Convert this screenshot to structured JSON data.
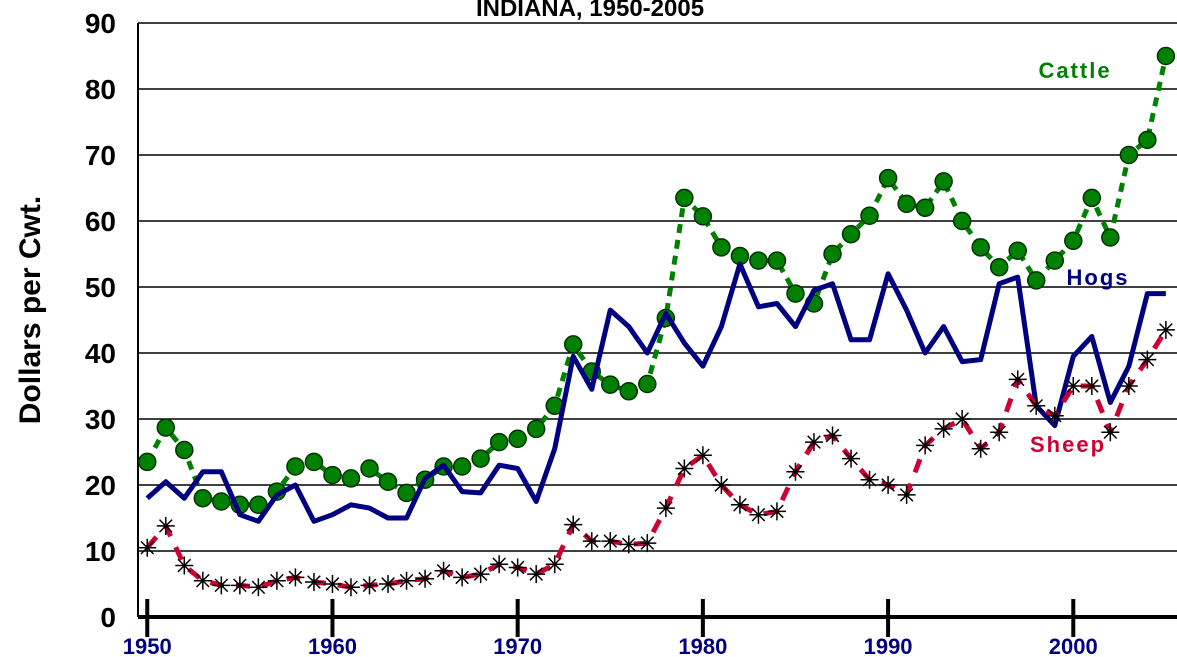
{
  "chart_data": {
    "type": "line",
    "title": "INDIANA, 1950-2005",
    "y_label": "Dollars per Cwt.",
    "x": [
      1950,
      1951,
      1952,
      1953,
      1954,
      1955,
      1956,
      1957,
      1958,
      1959,
      1960,
      1961,
      1962,
      1963,
      1964,
      1965,
      1966,
      1967,
      1968,
      1969,
      1970,
      1971,
      1972,
      1973,
      1974,
      1975,
      1976,
      1977,
      1978,
      1979,
      1980,
      1981,
      1982,
      1983,
      1984,
      1985,
      1986,
      1987,
      1988,
      1989,
      1990,
      1991,
      1992,
      1993,
      1994,
      1995,
      1996,
      1997,
      1998,
      1999,
      2000,
      2001,
      2002,
      2003,
      2004,
      2005
    ],
    "series": [
      {
        "name": "Cattle",
        "color": "#008000",
        "values": [
          23.5,
          28.7,
          25.3,
          18,
          17.5,
          17,
          17,
          19,
          22.8,
          23.5,
          21.5,
          21,
          22.5,
          20.5,
          18.8,
          20.8,
          22.8,
          22.8,
          24,
          26.5,
          27,
          28.5,
          32,
          41.3,
          37.2,
          35.2,
          34.2,
          35.3,
          45.3,
          63.5,
          60.7,
          56,
          54.7,
          54,
          54,
          49,
          47.5,
          55,
          58,
          60.8,
          66.5,
          62.6,
          62,
          66,
          60,
          56,
          53,
          55.5,
          51,
          54,
          57,
          63.5,
          57.5,
          70,
          72.3,
          85
        ]
      },
      {
        "name": "Hogs",
        "color": "#000080",
        "values": [
          18,
          20.5,
          18,
          22,
          22,
          15.5,
          14.5,
          18.5,
          20,
          14.5,
          15.5,
          17,
          16.5,
          15,
          15,
          21,
          23,
          19,
          18.8,
          23,
          22.5,
          17.5,
          25.5,
          39.5,
          34.5,
          46.5,
          44,
          40,
          46,
          41.5,
          38,
          44,
          53.5,
          47,
          47.5,
          44,
          49.5,
          50.5,
          42,
          42,
          52,
          46.5,
          40,
          44,
          38.7,
          39,
          50.5,
          51.5,
          32,
          29,
          39.5,
          42.5,
          32.5,
          38,
          49,
          49
        ]
      },
      {
        "name": "Sheep",
        "color": "#cc0033",
        "values": [
          10.5,
          13.8,
          7.8,
          5.5,
          4.8,
          4.8,
          4.5,
          5.5,
          6,
          5.3,
          5,
          4.5,
          4.8,
          5,
          5.5,
          5.8,
          7,
          6,
          6.5,
          8,
          7.5,
          6.5,
          8,
          14,
          11.5,
          11.5,
          11,
          11.2,
          16.5,
          22.5,
          24.5,
          20,
          17,
          15.5,
          16,
          22,
          26.5,
          27.5,
          24,
          20.8,
          20,
          18.5,
          26,
          28.5,
          30,
          25.5,
          28,
          36,
          32,
          30.5,
          35,
          35,
          28,
          35,
          39,
          43.5
        ]
      }
    ],
    "xlim": [
      1949.5,
      2005.6
    ],
    "xticks": [
      1950,
      1960,
      1970,
      1980,
      1990,
      2000
    ],
    "ylim": [
      0,
      90
    ],
    "yticks": [
      0,
      10,
      20,
      30,
      40,
      50,
      60,
      70,
      80,
      90
    ],
    "grid": true
  }
}
